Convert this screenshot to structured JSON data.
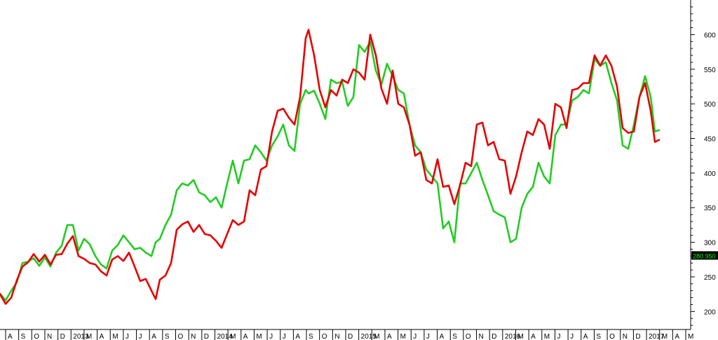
{
  "chart_data": {
    "type": "line",
    "title": "",
    "xlabel": "",
    "ylabel": "",
    "ylim": [
      174,
      648
    ],
    "y_ticks": [
      200,
      250,
      300,
      350,
      400,
      450,
      500,
      550,
      600
    ],
    "grid": false,
    "x_ticks": [
      "A",
      "S",
      "O",
      "N",
      "D",
      "2013",
      "M",
      "A",
      "M",
      "J",
      "J",
      "A",
      "S",
      "O",
      "N",
      "D",
      "2014",
      "M",
      "A",
      "M",
      "J",
      "J",
      "A",
      "S",
      "O",
      "N",
      "D",
      "2015",
      "M",
      "A",
      "M",
      "J",
      "J",
      "A",
      "S",
      "O",
      "N",
      "D",
      "2016",
      "M",
      "A",
      "M",
      "J",
      "J",
      "A",
      "S",
      "O",
      "N",
      "D",
      "2017",
      "M",
      "A",
      "M"
    ],
    "price_marker": {
      "value": 280.95,
      "label": "280.950"
    },
    "colors": {
      "series_red": "#e60000",
      "series_green": "#22cc22",
      "marker_bg": "#000000",
      "marker_text": "#00ff00"
    },
    "series": [
      {
        "color": "red",
        "values": [
          [
            0,
            225
          ],
          [
            8,
            211
          ],
          [
            16,
            220
          ],
          [
            24,
            245
          ],
          [
            32,
            265
          ],
          [
            40,
            271
          ],
          [
            48,
            283
          ],
          [
            56,
            272
          ],
          [
            64,
            282
          ],
          [
            72,
            268
          ],
          [
            80,
            282
          ],
          [
            88,
            283
          ],
          [
            96,
            298
          ],
          [
            104,
            309
          ],
          [
            112,
            280
          ],
          [
            120,
            276
          ],
          [
            128,
            270
          ],
          [
            136,
            268
          ],
          [
            144,
            258
          ],
          [
            152,
            252
          ],
          [
            160,
            275
          ],
          [
            168,
            280
          ],
          [
            176,
            273
          ],
          [
            184,
            285
          ],
          [
            192,
            265
          ],
          [
            200,
            244
          ],
          [
            208,
            247
          ],
          [
            216,
            230
          ],
          [
            222,
            218
          ],
          [
            228,
            246
          ],
          [
            236,
            252
          ],
          [
            244,
            270
          ],
          [
            252,
            318
          ],
          [
            260,
            326
          ],
          [
            268,
            330
          ],
          [
            276,
            315
          ],
          [
            284,
            325
          ],
          [
            292,
            312
          ],
          [
            300,
            310
          ],
          [
            308,
            302
          ],
          [
            316,
            292
          ],
          [
            324,
            312
          ],
          [
            332,
            332
          ],
          [
            340,
            325
          ],
          [
            348,
            330
          ],
          [
            356,
            375
          ],
          [
            364,
            368
          ],
          [
            372,
            405
          ],
          [
            380,
            410
          ],
          [
            388,
            460
          ],
          [
            396,
            490
          ],
          [
            404,
            493
          ],
          [
            412,
            480
          ],
          [
            420,
            470
          ],
          [
            428,
            510
          ],
          [
            436,
            595
          ],
          [
            440,
            607
          ],
          [
            448,
            570
          ],
          [
            456,
            520
          ],
          [
            464,
            495
          ],
          [
            472,
            520
          ],
          [
            480,
            512
          ],
          [
            488,
            535
          ],
          [
            496,
            530
          ],
          [
            504,
            550
          ],
          [
            512,
            545
          ],
          [
            520,
            535
          ],
          [
            528,
            600
          ],
          [
            536,
            570
          ],
          [
            544,
            522
          ],
          [
            552,
            500
          ],
          [
            560,
            548
          ],
          [
            568,
            500
          ],
          [
            576,
            495
          ],
          [
            584,
            470
          ],
          [
            592,
            425
          ],
          [
            600,
            430
          ],
          [
            608,
            390
          ],
          [
            616,
            385
          ],
          [
            624,
            420
          ],
          [
            632,
            380
          ],
          [
            640,
            382
          ],
          [
            648,
            355
          ],
          [
            656,
            382
          ],
          [
            664,
            415
          ],
          [
            672,
            410
          ],
          [
            680,
            470
          ],
          [
            688,
            473
          ],
          [
            696,
            440
          ],
          [
            704,
            445
          ],
          [
            712,
            420
          ],
          [
            720,
            418
          ],
          [
            728,
            370
          ],
          [
            736,
            395
          ],
          [
            744,
            430
          ],
          [
            752,
            460
          ],
          [
            760,
            455
          ],
          [
            768,
            478
          ],
          [
            776,
            470
          ],
          [
            784,
            435
          ],
          [
            792,
            500
          ],
          [
            800,
            495
          ],
          [
            808,
            465
          ],
          [
            816,
            520
          ],
          [
            824,
            522
          ],
          [
            832,
            530
          ],
          [
            840,
            530
          ],
          [
            848,
            570
          ],
          [
            856,
            555
          ],
          [
            864,
            570
          ],
          [
            872,
            555
          ],
          [
            880,
            525
          ],
          [
            888,
            465
          ],
          [
            896,
            458
          ],
          [
            904,
            460
          ],
          [
            912,
            510
          ],
          [
            920,
            530
          ],
          [
            928,
            490
          ],
          [
            934,
            445
          ],
          [
            940,
            448
          ]
        ]
      },
      {
        "color": "green",
        "values": [
          [
            0,
            226
          ],
          [
            8,
            216
          ],
          [
            16,
            230
          ],
          [
            24,
            242
          ],
          [
            32,
            270
          ],
          [
            40,
            272
          ],
          [
            48,
            277
          ],
          [
            56,
            266
          ],
          [
            64,
            278
          ],
          [
            72,
            265
          ],
          [
            80,
            285
          ],
          [
            88,
            295
          ],
          [
            96,
            325
          ],
          [
            104,
            325
          ],
          [
            112,
            288
          ],
          [
            120,
            305
          ],
          [
            128,
            297
          ],
          [
            136,
            280
          ],
          [
            144,
            268
          ],
          [
            152,
            262
          ],
          [
            160,
            288
          ],
          [
            168,
            296
          ],
          [
            176,
            310
          ],
          [
            184,
            300
          ],
          [
            192,
            290
          ],
          [
            200,
            292
          ],
          [
            208,
            285
          ],
          [
            216,
            280
          ],
          [
            222,
            300
          ],
          [
            228,
            305
          ],
          [
            236,
            325
          ],
          [
            244,
            340
          ],
          [
            252,
            375
          ],
          [
            260,
            385
          ],
          [
            268,
            382
          ],
          [
            276,
            390
          ],
          [
            284,
            372
          ],
          [
            292,
            368
          ],
          [
            300,
            358
          ],
          [
            308,
            365
          ],
          [
            316,
            350
          ],
          [
            324,
            385
          ],
          [
            332,
            418
          ],
          [
            340,
            385
          ],
          [
            348,
            418
          ],
          [
            356,
            420
          ],
          [
            364,
            440
          ],
          [
            372,
            430
          ],
          [
            380,
            418
          ],
          [
            388,
            440
          ],
          [
            396,
            453
          ],
          [
            404,
            470
          ],
          [
            412,
            440
          ],
          [
            420,
            432
          ],
          [
            428,
            500
          ],
          [
            436,
            520
          ],
          [
            440,
            515
          ],
          [
            448,
            519
          ],
          [
            456,
            500
          ],
          [
            464,
            478
          ],
          [
            472,
            535
          ],
          [
            480,
            530
          ],
          [
            488,
            532
          ],
          [
            496,
            497
          ],
          [
            504,
            510
          ],
          [
            512,
            585
          ],
          [
            520,
            575
          ],
          [
            528,
            590
          ],
          [
            536,
            548
          ],
          [
            544,
            528
          ],
          [
            552,
            558
          ],
          [
            560,
            540
          ],
          [
            568,
            520
          ],
          [
            576,
            515
          ],
          [
            584,
            470
          ],
          [
            592,
            440
          ],
          [
            600,
            430
          ],
          [
            608,
            405
          ],
          [
            616,
            395
          ],
          [
            624,
            385
          ],
          [
            632,
            320
          ],
          [
            640,
            330
          ],
          [
            648,
            300
          ],
          [
            656,
            385
          ],
          [
            664,
            385
          ],
          [
            672,
            400
          ],
          [
            680,
            415
          ],
          [
            688,
            390
          ],
          [
            696,
            368
          ],
          [
            704,
            345
          ],
          [
            712,
            340
          ],
          [
            720,
            336
          ],
          [
            728,
            300
          ],
          [
            736,
            305
          ],
          [
            744,
            350
          ],
          [
            752,
            370
          ],
          [
            760,
            380
          ],
          [
            768,
            415
          ],
          [
            776,
            395
          ],
          [
            784,
            385
          ],
          [
            792,
            455
          ],
          [
            800,
            470
          ],
          [
            808,
            470
          ],
          [
            816,
            505
          ],
          [
            824,
            510
          ],
          [
            832,
            520
          ],
          [
            840,
            515
          ],
          [
            848,
            565
          ],
          [
            856,
            555
          ],
          [
            864,
            560
          ],
          [
            872,
            530
          ],
          [
            880,
            505
          ],
          [
            888,
            440
          ],
          [
            896,
            435
          ],
          [
            904,
            470
          ],
          [
            912,
            510
          ],
          [
            920,
            540
          ],
          [
            928,
            510
          ],
          [
            934,
            460
          ],
          [
            940,
            462
          ]
        ]
      }
    ]
  }
}
